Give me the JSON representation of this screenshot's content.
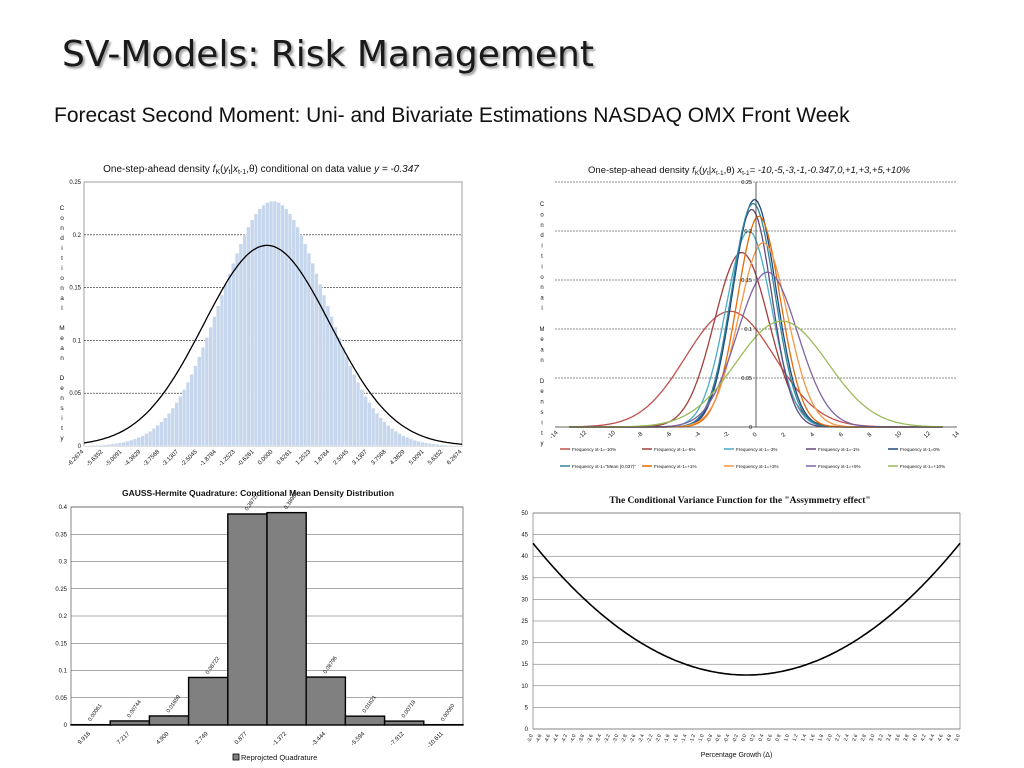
{
  "slide": {
    "title": "SV-Models: Risk Management",
    "subtitle": "Forecast Second Moment: Uni- and Bivariate Estimations NASDAQ OMX Front Week"
  },
  "chart_data": [
    {
      "id": "density",
      "type": "bar",
      "title": "One-step-ahead density f_K(y_t|x_{t-1},θ) conditional on data value y = -0.347",
      "ylabel": "Conditional Mean Density",
      "xlabel": "",
      "ylim": [
        0,
        0.25
      ],
      "yticks": [
        "0",
        "0.05",
        "0.1",
        "0.15",
        "0.2",
        "0.25"
      ],
      "xticks": [
        "-6.2674",
        "-5.6352",
        "-5.0091",
        "-4.3829",
        "-3.7568",
        "-3.1307",
        "-2.5045",
        "-1.8784",
        "-1.2523",
        "-0.6261",
        "0.0000",
        "0.6261",
        "1.2523",
        "1.8784",
        "2.5045",
        "3.1307",
        "3.7568",
        "4.3829",
        "5.0091",
        "5.6352",
        "6.2674"
      ],
      "xrange": [
        -6.2674,
        6.2674
      ],
      "histogram": {
        "mean": 0.0,
        "sd": 1.72,
        "peak": 0.232,
        "bins": 100,
        "color": "#c6d6ec"
      },
      "curve": {
        "mean": -0.2,
        "sd": 2.1,
        "peak": 0.19,
        "color": "#000000"
      },
      "grid": "horizontal-dashed"
    },
    {
      "id": "multi-density",
      "type": "line",
      "title": "One-step-ahead density f_K(y_t|x_{t-1},θ) x_{t-1}= -10,-5,-3,-1,-0.347,0,+1,+3,+5,+10%",
      "ylabel": "Conditional Mean Density",
      "xlim": [
        -14,
        14
      ],
      "ylim": [
        0,
        0.25
      ],
      "xticks": [
        "-14",
        "-12",
        "-10",
        "-8",
        "-6",
        "-4",
        "-2",
        "0",
        "2",
        "4",
        "6",
        "8",
        "10",
        "12",
        "14"
      ],
      "yticks": [
        "0",
        "0.05",
        "0.1",
        "0.15",
        "0.2",
        "0.25"
      ],
      "series": [
        {
          "name": "Frequency xt-1=-10%",
          "color": "#c0504d",
          "mean": -1.8,
          "sd": 3.1,
          "peak": 0.118
        },
        {
          "name": "Frequency xt-1=-5%",
          "color": "#a0403c",
          "mean": -1.0,
          "sd": 1.9,
          "peak": 0.178
        },
        {
          "name": "Frequency xt-1=-3%",
          "color": "#4bacc6",
          "mean": -0.5,
          "sd": 1.6,
          "peak": 0.2
        },
        {
          "name": "Frequency xt-1=-1%",
          "color": "#604a7b",
          "mean": -0.3,
          "sd": 1.4,
          "peak": 0.222
        },
        {
          "name": "Frequency xt-1=0%",
          "color": "#1f497d",
          "mean": -0.1,
          "sd": 1.5,
          "peak": 0.232
        },
        {
          "name": "Frequency xt-1=\"Mean (0.037)\"",
          "color": "#31859c",
          "mean": -0.2,
          "sd": 1.5,
          "peak": 0.228
        },
        {
          "name": "Frequency xt-1=+1%",
          "color": "#e36c09",
          "mean": 0.2,
          "sd": 1.5,
          "peak": 0.215
        },
        {
          "name": "Frequency xt-1=+3%",
          "color": "#f79646",
          "mean": 0.5,
          "sd": 1.7,
          "peak": 0.188
        },
        {
          "name": "Frequency xt-1=+5%",
          "color": "#8064a2",
          "mean": 0.8,
          "sd": 2.1,
          "peak": 0.158
        },
        {
          "name": "Frequency xt-1=+10%",
          "color": "#9bbb59",
          "mean": 1.8,
          "sd": 3.2,
          "peak": 0.108
        }
      ],
      "legend": "bottom",
      "grid": "horizontal-dashed"
    },
    {
      "id": "gauss-hermite",
      "type": "bar",
      "title": "GAUSS-Hermite Quadrature: Conditional Mean Density Distribution",
      "ylim": [
        0,
        0.4
      ],
      "yticks": [
        "0",
        "0.05",
        "0.1",
        "0.15",
        "0.2",
        "0.25",
        "0.3",
        "0.35",
        "0.4"
      ],
      "categories": [
        "9.916",
        "7.217",
        "4.900",
        "2.749",
        "0.877",
        "-1.372",
        "-3.444",
        "-5.594",
        "-7.912",
        "-10.611"
      ],
      "values": [
        0.00061,
        0.00744,
        0.01659,
        0.08722,
        0.3872,
        0.38966,
        0.08796,
        0.01621,
        0.00718,
        0.0006
      ],
      "labels": [
        "0.00061",
        "0.00744",
        "0.01659",
        "0.08722",
        "0.38720",
        "0.38966",
        "0.08796",
        "0.01621",
        "0.00718",
        "0.00060"
      ],
      "legend": "Reprojcted Quadrature",
      "bar_color": "#808080",
      "grid": "horizontal"
    },
    {
      "id": "variance",
      "type": "line",
      "title": "The Conditional Variance Function for the \"Assymmetry effect\"",
      "xlabel": "Percentage Growth (Δ)",
      "xlim": [
        -5.0,
        5.0
      ],
      "ylim": [
        0,
        50
      ],
      "yticks": [
        "0",
        "5",
        "10",
        "15",
        "20",
        "25",
        "30",
        "35",
        "40",
        "45",
        "50"
      ],
      "xticks": [
        "-5.0",
        "-4.8",
        "-4.6",
        "-4.4",
        "-4.2",
        "-4.0",
        "-3.8",
        "-3.6",
        "-3.4",
        "-3.2",
        "-3.0",
        "-2.8",
        "-2.6",
        "-2.4",
        "-2.2",
        "-2.0",
        "-1.8",
        "-1.6",
        "-1.4",
        "-1.2",
        "-1.0",
        "-0.8",
        "-0.6",
        "-0.4",
        "-0.2",
        "0.0",
        "0.2",
        "0.4",
        "0.6",
        "0.8",
        "1.0",
        "1.2",
        "1.4",
        "1.6",
        "1.8",
        "2.0",
        "2.2",
        "2.4",
        "2.6",
        "2.8",
        "3.0",
        "3.2",
        "3.4",
        "3.6",
        "3.8",
        "4.0",
        "4.2",
        "4.4",
        "4.6",
        "4.8",
        "5.0"
      ],
      "curve": {
        "min_x": 0.0,
        "min_y": 12.5,
        "y_at_minus5": 43,
        "y_at_plus5": 43,
        "color": "#000000"
      },
      "grid": "horizontal"
    }
  ]
}
